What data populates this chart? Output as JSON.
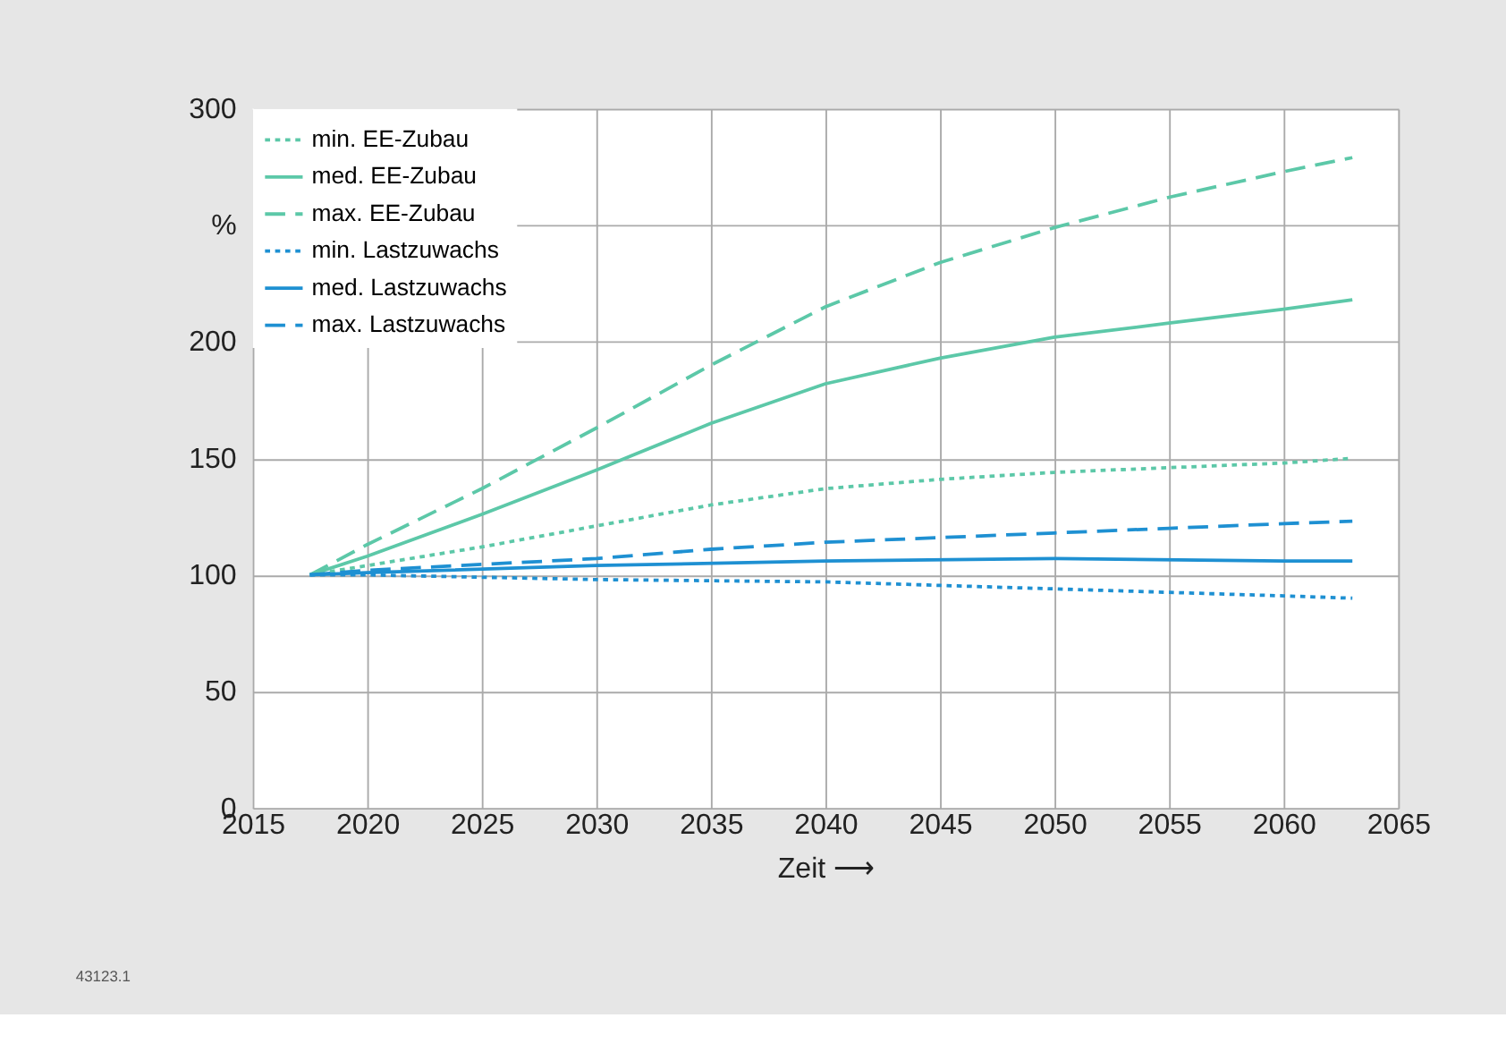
{
  "chart_data": {
    "type": "line",
    "xlabel": "Zeit ⟶",
    "xlim": [
      2015,
      2065
    ],
    "xticks": [
      2015,
      2020,
      2025,
      2030,
      2035,
      2040,
      2045,
      2050,
      2055,
      2060,
      2065
    ],
    "ylim": [
      0,
      300
    ],
    "yticks": [
      0,
      50,
      100,
      150,
      200,
      {
        "value": 250,
        "label": "%"
      },
      300
    ],
    "grid": true,
    "legend": "top left",
    "marker": "none",
    "series": [
      {
        "name": "min. EE-Zubau",
        "color": "#5cc8a8",
        "line_style": "dotted",
        "x": [
          2017.5,
          2020,
          2025,
          2030,
          2035,
          2040,
          2045,
          2050,
          2055,
          2060,
          2063
        ],
        "values": [
          100,
          104,
          112,
          121,
          130,
          137,
          141,
          144,
          146,
          148,
          150
        ]
      },
      {
        "name": "med. EE-Zubau",
        "color": "#5cc8a8",
        "line_style": "solid",
        "x": [
          2017.5,
          2020,
          2025,
          2030,
          2035,
          2040,
          2045,
          2050,
          2055,
          2060,
          2063
        ],
        "values": [
          100,
          108,
          126,
          145,
          165,
          182,
          193,
          202,
          208,
          214,
          218
        ]
      },
      {
        "name": "max. EE-Zubau",
        "color": "#5cc8a8",
        "line_style": "dashed",
        "x": [
          2017.5,
          2020,
          2025,
          2030,
          2035,
          2040,
          2045,
          2050,
          2055,
          2060,
          2063
        ],
        "values": [
          100,
          113,
          137,
          163,
          190,
          215,
          234,
          249,
          262,
          273,
          279
        ]
      },
      {
        "name": "min. Lastzuwachs",
        "color": "#1e90d2",
        "line_style": "dotted",
        "x": [
          2017.5,
          2020,
          2030,
          2040,
          2050,
          2060,
          2063
        ],
        "values": [
          100,
          100,
          98,
          97,
          94,
          91,
          90
        ]
      },
      {
        "name": "med. Lastzuwachs",
        "color": "#1e90d2",
        "line_style": "solid",
        "x": [
          2017.5,
          2020,
          2030,
          2040,
          2050,
          2060,
          2063
        ],
        "values": [
          100,
          101,
          104,
          106,
          107,
          106,
          106
        ]
      },
      {
        "name": "max. Lastzuwachs",
        "color": "#1e90d2",
        "line_style": "dashed",
        "x": [
          2017.5,
          2020,
          2030,
          2035,
          2040,
          2045,
          2050,
          2055,
          2060,
          2063
        ],
        "values": [
          100,
          102,
          107,
          111,
          114,
          116,
          118,
          120,
          122,
          123
        ]
      }
    ],
    "annotations": [
      "43123.1"
    ]
  }
}
